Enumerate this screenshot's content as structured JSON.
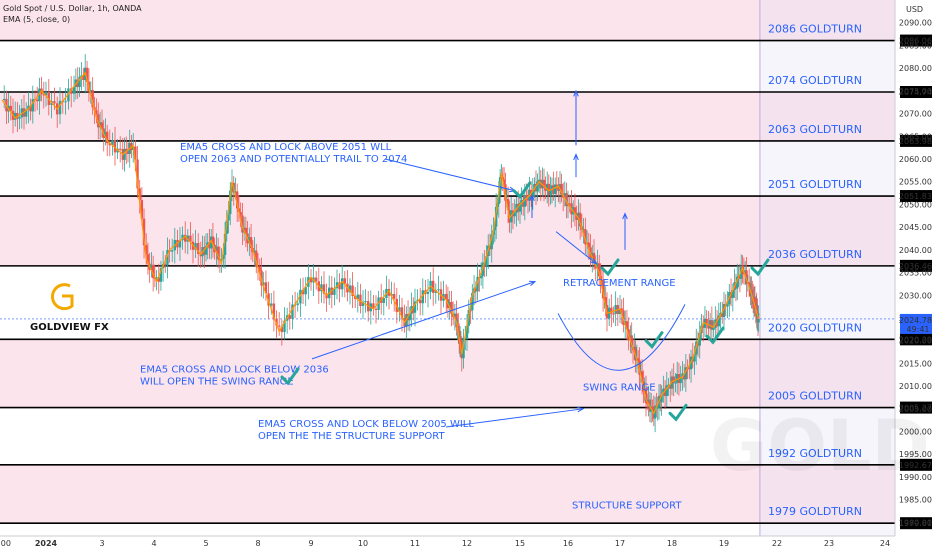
{
  "chart_data": {
    "type": "candlestick",
    "title": "Gold Spot / U.S. Dollar, 1h, OANDA",
    "indicator": "EMA (5, close, 0)",
    "currency": "USD",
    "logo_text": "GOLDVIEW FX",
    "watermark": "GOLD",
    "ylim": [
      1977,
      2095
    ],
    "y_ticks": [
      1980,
      1985,
      1990,
      1995,
      2000,
      2005,
      2010,
      2015,
      2020,
      2025,
      2030,
      2035,
      2040,
      2045,
      2050,
      2055,
      2060,
      2065,
      2070,
      2075,
      2080,
      2085,
      2090
    ],
    "x_ticks": [
      {
        "label": "0:00",
        "t": 0
      },
      {
        "label": "2024",
        "t": 1
      },
      {
        "label": "3",
        "t": 2
      },
      {
        "label": "4",
        "t": 3
      },
      {
        "label": "5",
        "t": 4
      },
      {
        "label": "8",
        "t": 5
      },
      {
        "label": "9",
        "t": 6
      },
      {
        "label": "10",
        "t": 7
      },
      {
        "label": "11",
        "t": 8
      },
      {
        "label": "12",
        "t": 9
      },
      {
        "label": "15",
        "t": 10
      },
      {
        "label": "16",
        "t": 11
      },
      {
        "label": "17",
        "t": 12
      },
      {
        "label": "18",
        "t": 13
      },
      {
        "label": "19",
        "t": 14
      },
      {
        "label": "22",
        "t": 15
      },
      {
        "label": "23",
        "t": 16
      },
      {
        "label": "24",
        "t": 17
      }
    ],
    "levels": [
      {
        "price": 2086.069,
        "price_label": "2086.069",
        "label": "2086 GOLDTURN"
      },
      {
        "price": 2074.744,
        "price_label": "2074.744",
        "label": "2074 GOLDTURN"
      },
      {
        "price": 2063.982,
        "price_label": "2063.982",
        "label": "2063 GOLDTURN"
      },
      {
        "price": 2051.839,
        "price_label": "2051.839",
        "label": "2051 GOLDTURN"
      },
      {
        "price": 2036.467,
        "price_label": "2036.467",
        "label": "2036 GOLDTURN"
      },
      {
        "price": 2020.295,
        "price_label": "2020.295",
        "label": "2020 GOLDTURN"
      },
      {
        "price": 2005.27,
        "price_label": "2005.270",
        "label": "2005 GOLDTURN"
      },
      {
        "price": 1992.671,
        "price_label": "1992.671",
        "label": "1992 GOLDTURN"
      },
      {
        "price": 1979.819,
        "price_label": "1979.819",
        "label": "1979 GOLDTURN"
      }
    ],
    "current_price": {
      "price": 2024.785,
      "label": "2024.785",
      "countdown": "49:41"
    },
    "annotations": [
      {
        "lines": [
          "EMA5 CROSS AND LOCK ABOVE 2051 WLL",
          "OPEN 2063 AND POTENTIALLY TRAIL TO 2074"
        ]
      },
      {
        "lines": [
          "RETRACEMENT RANGE"
        ]
      },
      {
        "lines": [
          "EMA5 CROSS AND LOCK BELOW 2036",
          "WILL OPEN THE SWING RANGE"
        ]
      },
      {
        "lines": [
          "SWING RANGE"
        ]
      },
      {
        "lines": [
          "EMA5 CROSS AND LOCK BELOW 2005 WILL",
          "OPEN THE THE STRUCTURE SUPPORT"
        ]
      },
      {
        "lines": [
          "STRUCTURE SUPPORT"
        ]
      }
    ],
    "series": [
      {
        "name": "price",
        "points": [
          [
            0,
            2073
          ],
          [
            0.3,
            2069
          ],
          [
            0.6,
            2071
          ],
          [
            0.9,
            2075
          ],
          [
            1.2,
            2071
          ],
          [
            1.5,
            2076
          ],
          [
            1.7,
            2079
          ],
          [
            1.9,
            2069
          ],
          [
            2.1,
            2064
          ],
          [
            2.4,
            2061
          ],
          [
            2.6,
            2063
          ],
          [
            2.85,
            2038
          ],
          [
            3.05,
            2033
          ],
          [
            3.3,
            2040
          ],
          [
            3.6,
            2043
          ],
          [
            3.9,
            2039
          ],
          [
            4.1,
            2042
          ],
          [
            4.3,
            2037
          ],
          [
            4.5,
            2055
          ],
          [
            4.7,
            2045
          ],
          [
            4.9,
            2040
          ],
          [
            5.1,
            2032
          ],
          [
            5.4,
            2022
          ],
          [
            5.7,
            2028
          ],
          [
            6.0,
            2034
          ],
          [
            6.3,
            2030
          ],
          [
            6.6,
            2033
          ],
          [
            6.9,
            2029
          ],
          [
            7.2,
            2027
          ],
          [
            7.5,
            2031
          ],
          [
            7.8,
            2024
          ],
          [
            8.0,
            2028
          ],
          [
            8.3,
            2032
          ],
          [
            8.6,
            2029
          ],
          [
            8.8,
            2024
          ],
          [
            8.9,
            2017
          ],
          [
            9.1,
            2030
          ],
          [
            9.3,
            2036
          ],
          [
            9.5,
            2044
          ],
          [
            9.65,
            2057
          ],
          [
            9.8,
            2047
          ],
          [
            10.0,
            2050
          ],
          [
            10.2,
            2052
          ],
          [
            10.4,
            2055
          ],
          [
            10.6,
            2053
          ],
          [
            10.8,
            2054
          ],
          [
            11.0,
            2050
          ],
          [
            11.2,
            2047
          ],
          [
            11.4,
            2040
          ],
          [
            11.6,
            2035
          ],
          [
            11.75,
            2026
          ],
          [
            12.0,
            2027
          ],
          [
            12.2,
            2020
          ],
          [
            12.35,
            2015
          ],
          [
            12.5,
            2007
          ],
          [
            12.65,
            2004
          ],
          [
            12.8,
            2008
          ],
          [
            13.0,
            2011
          ],
          [
            13.2,
            2012
          ],
          [
            13.4,
            2016
          ],
          [
            13.6,
            2024
          ],
          [
            13.8,
            2023
          ],
          [
            14.0,
            2027
          ],
          [
            14.2,
            2032
          ],
          [
            14.35,
            2036
          ],
          [
            14.5,
            2031
          ],
          [
            14.6,
            2027
          ],
          [
            14.65,
            2024.8
          ]
        ]
      }
    ]
  }
}
